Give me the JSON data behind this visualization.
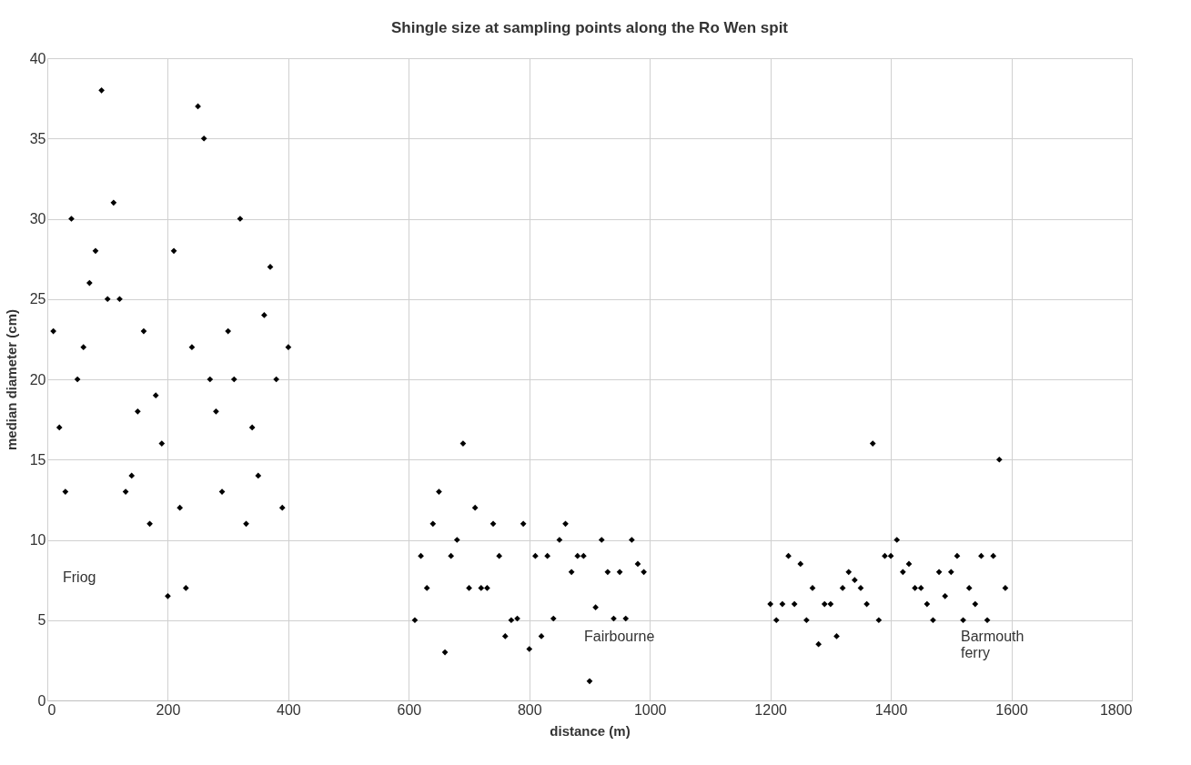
{
  "chart_data": {
    "type": "scatter",
    "title": "Shingle size at sampling points along the Ro Wen spit",
    "xlabel": "distance (m)",
    "ylabel": "median diameter (cm)",
    "x": [
      10,
      20,
      30,
      40,
      50,
      60,
      70,
      80,
      90,
      100,
      110,
      120,
      130,
      140,
      150,
      160,
      170,
      180,
      190,
      200,
      210,
      220,
      230,
      240,
      250,
      260,
      270,
      280,
      290,
      300,
      310,
      320,
      330,
      340,
      350,
      360,
      370,
      380,
      390,
      400,
      610,
      620,
      630,
      640,
      650,
      660,
      670,
      680,
      690,
      700,
      710,
      720,
      730,
      740,
      750,
      760,
      770,
      780,
      790,
      800,
      810,
      820,
      830,
      840,
      850,
      860,
      870,
      880,
      890,
      900,
      910,
      920,
      930,
      940,
      950,
      960,
      970,
      980,
      990,
      1200,
      1210,
      1220,
      1230,
      1240,
      1250,
      1260,
      1270,
      1280,
      1290,
      1300,
      1310,
      1320,
      1330,
      1340,
      1350,
      1360,
      1370,
      1380,
      1390,
      1400,
      1410,
      1420,
      1430,
      1440,
      1450,
      1460,
      1470,
      1480,
      1490,
      1500,
      1510,
      1520,
      1530,
      1540,
      1550,
      1560,
      1570,
      1580,
      1590
    ],
    "series": [
      {
        "color": "#000000",
        "values": [
          23,
          17,
          13,
          30,
          20,
          22,
          26,
          28,
          38,
          25,
          31,
          25,
          13,
          14,
          18,
          23,
          11,
          19,
          16,
          6.5,
          28,
          12,
          7,
          22,
          37,
          35,
          20,
          18,
          13,
          23,
          20,
          30,
          11,
          17,
          14,
          24,
          27,
          20,
          12,
          22,
          5,
          9,
          7,
          11,
          13,
          3,
          9,
          10,
          16,
          7,
          12,
          7,
          7,
          11,
          9,
          4,
          5,
          5.1,
          11,
          3.2,
          9,
          4,
          9,
          5.1,
          10,
          11,
          8,
          9,
          9,
          1.2,
          5.8,
          10,
          8,
          5.1,
          8,
          5.1,
          10,
          8.5,
          8,
          6,
          5,
          6,
          9,
          6,
          8.5,
          5,
          7,
          3.5,
          6,
          6,
          4,
          7,
          8,
          7.5,
          7,
          6,
          16,
          5,
          9,
          9,
          10,
          8,
          8.5,
          7,
          7,
          6,
          5,
          8,
          6.5,
          8,
          9,
          5,
          7,
          6,
          9,
          5,
          9,
          15,
          7
        ]
      }
    ],
    "xlim": [
      0,
      1800
    ],
    "xticks": [
      0,
      200,
      400,
      600,
      800,
      {
        "value": 1000,
        "label": "1000"
      },
      {
        "value": 1200,
        "label": "1200"
      },
      {
        "value": 1400,
        "label": "1400"
      },
      {
        "value": 1600,
        "label": "1600"
      },
      {
        "value": 1800,
        "label": "1800"
      }
    ],
    "ylim": [
      0,
      40
    ],
    "yticks": [
      0,
      5,
      10,
      15,
      20,
      25,
      30,
      35,
      40
    ],
    "grid": true,
    "marker": "diamond",
    "annotations": [
      "Friog",
      "Fairbourne",
      "Barmouth ferry"
    ]
  }
}
